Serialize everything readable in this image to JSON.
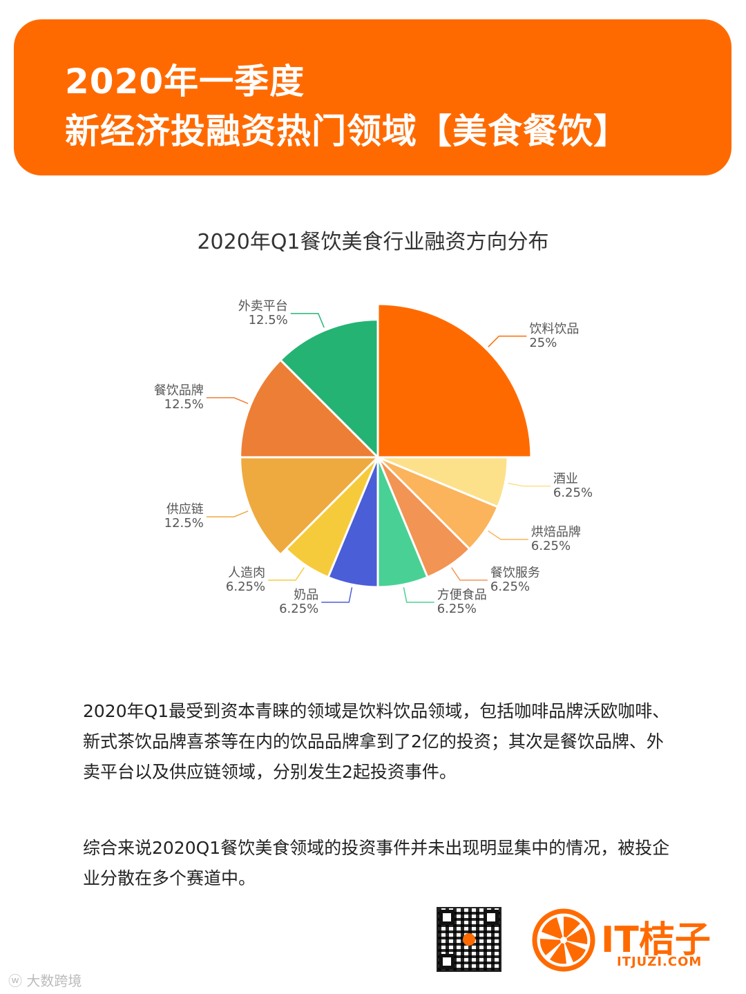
{
  "banner": {
    "line1": "2020年一季度",
    "line2": "新经济投融资热门领域【美食餐饮】",
    "color": "#ff6a00"
  },
  "chart_data": {
    "type": "pie",
    "title": "2020年Q1餐饮美食行业融资方向分布",
    "slices": [
      {
        "name": "饮料饮品",
        "value": 25,
        "label_value": "25%",
        "color": "#ff6a00"
      },
      {
        "name": "酒业",
        "value": 6.25,
        "label_value": "6.25%",
        "color": "#fde08a"
      },
      {
        "name": "烘焙品牌",
        "value": 6.25,
        "label_value": "6.25%",
        "color": "#fbb45c"
      },
      {
        "name": "餐饮服务",
        "value": 6.25,
        "label_value": "6.25%",
        "color": "#f29454"
      },
      {
        "name": "方便食品",
        "value": 6.25,
        "label_value": "6.25%",
        "color": "#49d195"
      },
      {
        "name": "奶品",
        "value": 6.25,
        "label_value": "6.25%",
        "color": "#4a5ed8"
      },
      {
        "name": "人造肉",
        "value": 6.25,
        "label_value": "6.25%",
        "color": "#f6cb3b"
      },
      {
        "name": "供应链",
        "value": 12.5,
        "label_value": "12.5%",
        "color": "#eeaa3e"
      },
      {
        "name": "餐饮品牌",
        "value": 12.5,
        "label_value": "12.5%",
        "color": "#ec7f35"
      },
      {
        "name": "外卖平台",
        "value": 12.5,
        "label_value": "12.5%",
        "color": "#25b374"
      }
    ]
  },
  "paragraphs": {
    "p1": "2020年Q1最受到资本青睐的领域是饮料饮品领域，包括咖啡品牌沃欧咖啡、新式茶饮品牌喜茶等在内的饮品品牌拿到了2亿的投资；其次是餐饮品牌、外卖平台以及供应链领域，分别发生2起投资事件。",
    "p2": "综合来说2020Q1餐饮美食领域的投资事件并未出现明显集中的情况，被投企业分散在多个赛道中。"
  },
  "footer": {
    "logo_text": "IT桔子",
    "logo_sub": "ITJUZI.COM",
    "watermark": "大数跨境"
  }
}
